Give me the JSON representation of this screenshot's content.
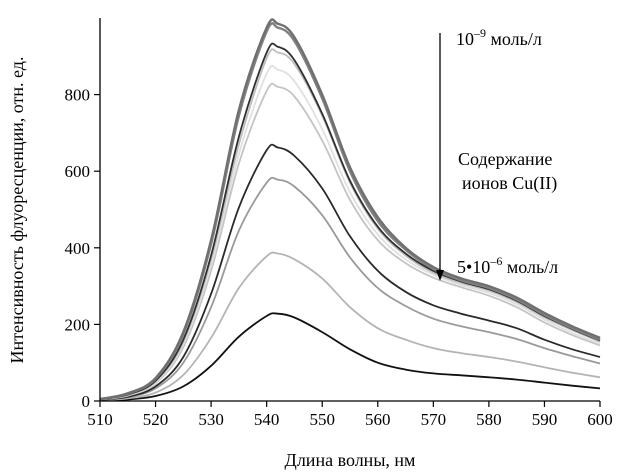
{
  "chart_data": {
    "type": "line",
    "xlabel": "Длина волны, нм",
    "ylabel": "Интенсивность флуоресценции, отн. ед.",
    "xlim": [
      510,
      600
    ],
    "ylim": [
      0,
      1000
    ],
    "x_ticks": [
      510,
      520,
      530,
      540,
      550,
      560,
      570,
      580,
      590,
      600
    ],
    "y_ticks": [
      0,
      200,
      400,
      600,
      800
    ],
    "grid": false,
    "x": [
      510,
      515,
      520,
      525,
      530,
      535,
      540,
      542,
      545,
      550,
      555,
      560,
      565,
      570,
      575,
      580,
      585,
      590,
      595,
      600
    ],
    "series": [
      {
        "color": "#707070",
        "values": [
          5,
          20,
          60,
          180,
          420,
          760,
          975,
          985,
          950,
          800,
          610,
          480,
          400,
          350,
          320,
          300,
          270,
          230,
          195,
          165
        ]
      },
      {
        "color": "#808080",
        "values": [
          5,
          19,
          58,
          175,
          410,
          745,
          965,
          975,
          940,
          790,
          600,
          470,
          395,
          345,
          315,
          295,
          265,
          225,
          190,
          160
        ]
      },
      {
        "color": "#303030",
        "values": [
          4,
          17,
          53,
          160,
          380,
          690,
          910,
          925,
          890,
          750,
          575,
          455,
          385,
          340,
          312,
          292,
          262,
          222,
          188,
          158
        ]
      },
      {
        "color": "#bdbdbd",
        "values": [
          4,
          16,
          51,
          155,
          370,
          670,
          895,
          910,
          880,
          745,
          570,
          450,
          380,
          335,
          308,
          288,
          258,
          218,
          185,
          155
        ]
      },
      {
        "color": "#e0e0e0",
        "values": [
          4,
          15,
          48,
          148,
          355,
          645,
          855,
          865,
          835,
          710,
          545,
          435,
          370,
          330,
          303,
          282,
          252,
          212,
          178,
          150
        ]
      },
      {
        "color": "#c4c4c4",
        "values": [
          4,
          14,
          46,
          140,
          340,
          620,
          810,
          820,
          795,
          680,
          525,
          420,
          360,
          322,
          297,
          275,
          245,
          205,
          172,
          145
        ]
      },
      {
        "color": "#2a2a2a",
        "values": [
          3,
          11,
          38,
          115,
          280,
          505,
          655,
          662,
          640,
          555,
          430,
          340,
          285,
          250,
          228,
          210,
          190,
          160,
          135,
          115
        ]
      },
      {
        "color": "#9a9a9a",
        "values": [
          3,
          10,
          33,
          100,
          245,
          445,
          570,
          578,
          560,
          485,
          375,
          295,
          248,
          215,
          195,
          180,
          162,
          138,
          117,
          98
        ]
      },
      {
        "color": "#b4b4b4",
        "values": [
          2,
          7,
          22,
          68,
          165,
          295,
          378,
          385,
          370,
          320,
          245,
          190,
          160,
          138,
          125,
          115,
          103,
          88,
          74,
          62
        ]
      },
      {
        "color": "#111111",
        "values": [
          2,
          4,
          13,
          38,
          92,
          168,
          222,
          228,
          218,
          180,
          135,
          100,
          82,
          72,
          67,
          62,
          56,
          48,
          40,
          33
        ]
      }
    ],
    "annotations": {
      "top_label_main": "10",
      "top_label_sup": "–9",
      "top_label_unit": " моль/л",
      "middle_line1": "Содержание",
      "middle_line2": "ионов Cu(II)",
      "bottom_label_main": "5•10",
      "bottom_label_sup": "–6",
      "bottom_label_unit": " моль/л"
    }
  }
}
